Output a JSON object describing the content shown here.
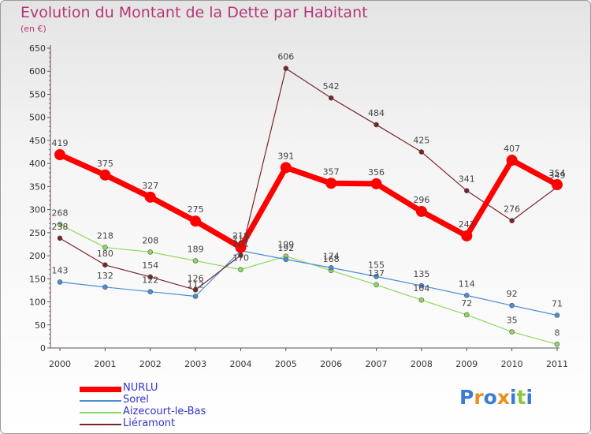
{
  "chart_data": {
    "type": "line",
    "title": "Evolution du Montant de la Dette par Habitant",
    "subtitle": "(en €)",
    "x": [
      "2000",
      "2001",
      "2002",
      "2003",
      "2004",
      "2005",
      "2006",
      "2007",
      "2008",
      "2009",
      "2010",
      "2011"
    ],
    "ylim": [
      0,
      650
    ],
    "yticks": [
      0,
      50,
      100,
      150,
      200,
      250,
      300,
      350,
      400,
      450,
      500,
      550,
      600,
      650
    ],
    "grid": false,
    "legend_position": "bottom-left",
    "series": [
      {
        "name": "NURLU",
        "color": "#ff0000",
        "values": [
          419,
          375,
          327,
          275,
          218,
          391,
          357,
          356,
          296,
          243,
          407,
          354
        ]
      },
      {
        "name": "Sorel",
        "color": "#4a8ed4",
        "values": [
          143,
          132,
          122,
          112,
          211,
          192,
          174,
          155,
          135,
          114,
          92,
          71
        ]
      },
      {
        "name": "Aizecourt-le-Bas",
        "color": "#8fd85f",
        "values": [
          268,
          218,
          208,
          189,
          170,
          199,
          168,
          137,
          104,
          72,
          35,
          8
        ]
      },
      {
        "name": "Liéramont",
        "color": "#7a2428",
        "values": [
          238,
          180,
          154,
          126,
          201,
          606,
          542,
          484,
          425,
          341,
          276,
          349
        ]
      }
    ]
  },
  "logo": {
    "text": "Proxiti",
    "letters": [
      {
        "ch": "P",
        "color": "#3a7bd5"
      },
      {
        "ch": "r",
        "color": "#e8901c"
      },
      {
        "ch": "o",
        "color": "#3a7bd5"
      },
      {
        "ch": "x",
        "color": "#e8901c"
      },
      {
        "ch": "i",
        "color": "#3a7bd5"
      },
      {
        "ch": "t",
        "color": "#8cc63f"
      },
      {
        "ch": "i",
        "color": "#3a7bd5"
      }
    ]
  }
}
